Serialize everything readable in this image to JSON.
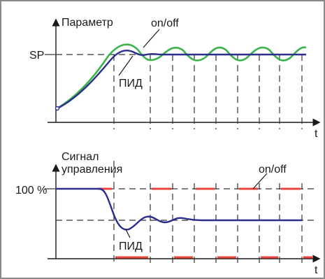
{
  "top_chart": {
    "y_label": "Параметр",
    "setpoint_label": "SP",
    "x_label": "t",
    "series": [
      {
        "name": "on/off",
        "color": "#3ab44a"
      },
      {
        "name": "ПИД",
        "color": "#2b2f8c"
      }
    ]
  },
  "bottom_chart": {
    "y_label_line1": "Сигнал",
    "y_label_line2": "управления",
    "level_label": "100 %",
    "x_label": "t",
    "series": [
      {
        "name": "on/off",
        "color": "#e8453c"
      },
      {
        "name": "ПИД",
        "color": "#2b2f8c"
      }
    ]
  },
  "colors": {
    "frame": "#7a7a7a",
    "axis": "#1a1a1a",
    "dashed": "#333333"
  }
}
